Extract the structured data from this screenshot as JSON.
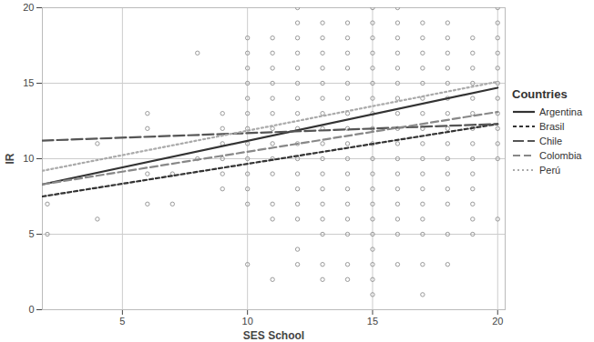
{
  "chart_data": {
    "type": "scatter",
    "x_label": "SES School",
    "y_label": "IR",
    "legend_title": "Countries",
    "legend": "right",
    "grid": true,
    "xlim": [
      1.8,
      20.3
    ],
    "ylim": [
      0,
      20
    ],
    "xticks": [
      5,
      10,
      15,
      20
    ],
    "yticks": [
      0,
      5,
      10,
      15,
      20
    ],
    "points": [
      {
        "x": 2,
        "y": [
          5,
          7
        ]
      },
      {
        "x": 4,
        "y": [
          6,
          11
        ]
      },
      {
        "x": 6,
        "y": [
          7,
          9,
          12,
          13
        ]
      },
      {
        "x": 7,
        "y": [
          7,
          9
        ]
      },
      {
        "x": 8,
        "y": [
          10,
          17
        ]
      },
      {
        "x": 9,
        "y": [
          8,
          9,
          10,
          11,
          12,
          13
        ]
      },
      {
        "x": 10,
        "y": [
          3,
          7,
          8,
          9,
          10,
          11,
          12,
          13,
          14,
          15,
          16,
          17,
          18
        ]
      },
      {
        "x": 11,
        "y": [
          2,
          6,
          7,
          9,
          10,
          11,
          12,
          13,
          14,
          15,
          16,
          17,
          18
        ]
      },
      {
        "x": 12,
        "y": [
          3,
          4,
          6,
          7,
          8,
          9,
          10,
          11,
          12,
          13,
          14,
          15,
          16,
          17,
          18,
          19,
          20
        ]
      },
      {
        "x": 13,
        "y": [
          2,
          3,
          5,
          6,
          7,
          8,
          9,
          10,
          11,
          12,
          13,
          14,
          15,
          16,
          17,
          18,
          19
        ]
      },
      {
        "x": 14,
        "y": [
          2,
          3,
          5,
          6,
          7,
          8,
          9,
          10,
          11,
          12,
          13,
          14,
          15,
          16,
          17,
          18,
          19
        ]
      },
      {
        "x": 15,
        "y": [
          1,
          2,
          3,
          4,
          5,
          6,
          7,
          8,
          9,
          10,
          11,
          12,
          13,
          14,
          15,
          16,
          17,
          18,
          19,
          20
        ]
      },
      {
        "x": 16,
        "y": [
          3,
          5,
          6,
          7,
          8,
          9,
          10,
          11,
          12,
          13,
          14,
          15,
          16,
          17,
          18,
          19,
          20
        ]
      },
      {
        "x": 17,
        "y": [
          1,
          3,
          5,
          6,
          7,
          8,
          9,
          10,
          11,
          12,
          13,
          14,
          15,
          16,
          17,
          18,
          19
        ]
      },
      {
        "x": 18,
        "y": [
          3,
          5,
          7,
          8,
          9,
          10,
          11,
          12,
          13,
          14,
          15,
          16,
          17,
          18,
          19
        ]
      },
      {
        "x": 19,
        "y": [
          5,
          6,
          7,
          8,
          9,
          10,
          11,
          12,
          13,
          14,
          15,
          16,
          17,
          18
        ]
      },
      {
        "x": 20,
        "y": [
          6,
          10,
          11,
          12,
          13,
          14,
          15,
          16,
          17,
          18,
          19,
          20
        ]
      }
    ],
    "points_color": "#9a9a9a",
    "series": [
      {
        "name": "Argentina",
        "type": "line",
        "color": "#333333",
        "line_style": "solid",
        "x": [
          1.8,
          20
        ],
        "values": [
          8.3,
          14.7
        ]
      },
      {
        "name": "Brasil",
        "type": "line",
        "color": "#333333",
        "line_style": "short-dash",
        "x": [
          1.8,
          20
        ],
        "values": [
          7.5,
          12.3
        ]
      },
      {
        "name": "Chile",
        "type": "line",
        "color": "#555555",
        "line_style": "long-dash",
        "x": [
          1.8,
          20
        ],
        "values": [
          11.2,
          12.3
        ]
      },
      {
        "name": "Colombia",
        "type": "line",
        "color": "#888888",
        "line_style": "dash",
        "x": [
          1.8,
          20
        ],
        "values": [
          8.3,
          13.1
        ]
      },
      {
        "name": "Perú",
        "type": "line",
        "color": "#aaaaaa",
        "line_style": "dotted",
        "x": [
          1.8,
          20
        ],
        "values": [
          9.2,
          15.1
        ]
      }
    ]
  }
}
